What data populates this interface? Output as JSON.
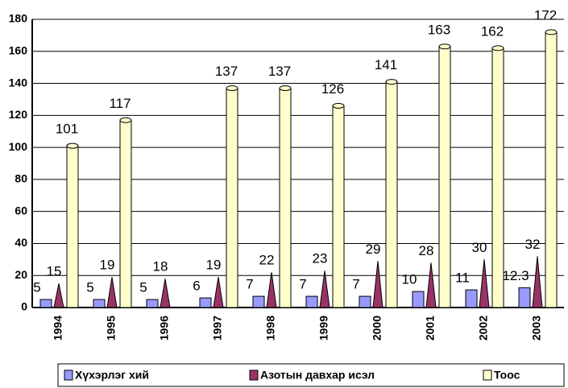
{
  "chart_data": {
    "type": "bar",
    "categories": [
      "1994",
      "1995",
      "1996",
      "1997",
      "1998",
      "1999",
      "2000",
      "2001",
      "2002",
      "2003"
    ],
    "series": [
      {
        "name": "Хүхэрлэг хий",
        "color": "#9999ff",
        "values": [
          5,
          5,
          5,
          6,
          7,
          7,
          7,
          10,
          11,
          12.3
        ]
      },
      {
        "name": "Азотын давхар исэл",
        "color": "#993366",
        "values": [
          15,
          19,
          18,
          19,
          22,
          23,
          29,
          28,
          30,
          32
        ]
      },
      {
        "name": "Тоос",
        "color": "#ffffcc",
        "values": [
          101,
          117,
          null,
          137,
          137,
          126,
          141,
          163,
          162,
          172
        ]
      }
    ],
    "ylim": [
      0,
      180
    ],
    "yticks": [
      0,
      20,
      40,
      60,
      80,
      100,
      120,
      140,
      160,
      180
    ],
    "grid": true,
    "legend": "bottom"
  }
}
